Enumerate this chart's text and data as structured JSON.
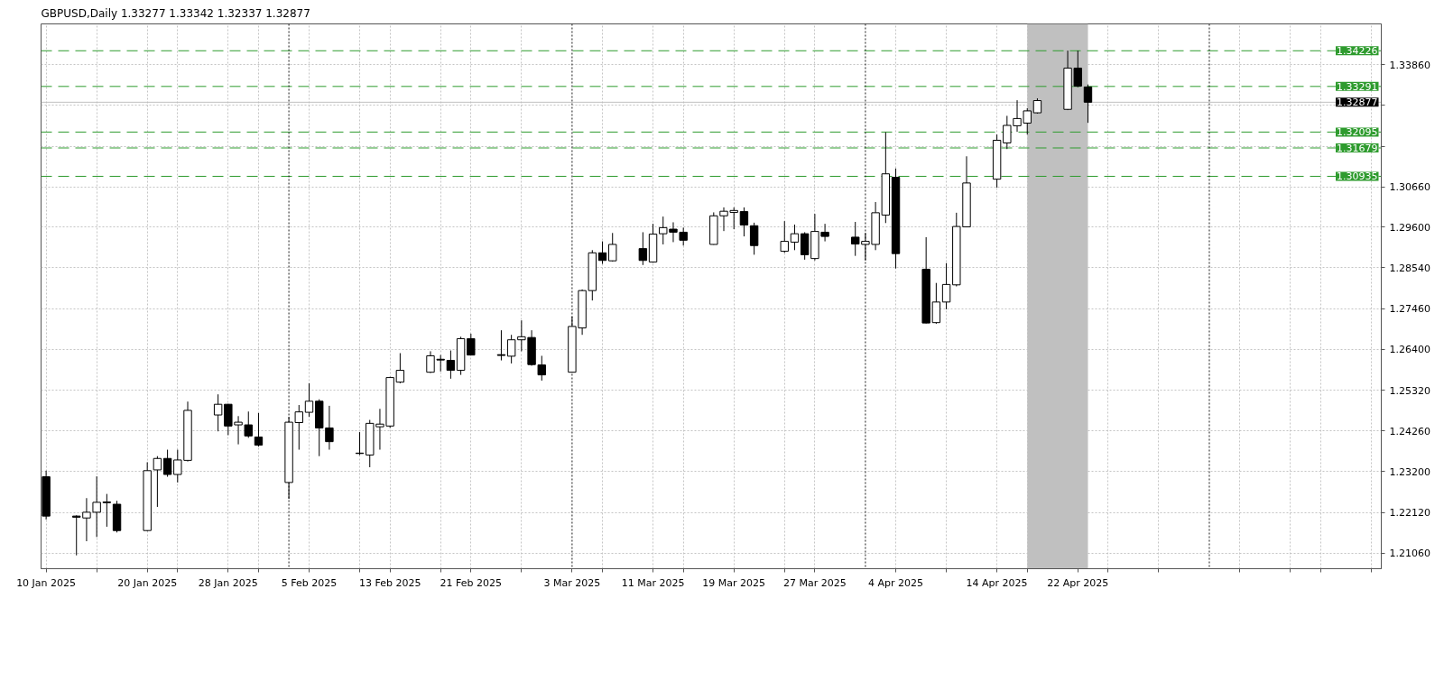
{
  "chart_data": {
    "type": "candlestick",
    "title": "GBPUSD,Daily 1.33277 1.33342 1.32337 1.32877",
    "x": [
      "2025-01-10",
      "2025-01-13",
      "2025-01-14",
      "2025-01-15",
      "2025-01-16",
      "2025-01-17",
      "2025-01-20",
      "2025-01-21",
      "2025-01-22",
      "2025-01-23",
      "2025-01-24",
      "2025-01-27",
      "2025-01-28",
      "2025-01-29",
      "2025-01-30",
      "2025-01-31",
      "2025-02-03",
      "2025-02-04",
      "2025-02-05",
      "2025-02-06",
      "2025-02-07",
      "2025-02-10",
      "2025-02-11",
      "2025-02-12",
      "2025-02-13",
      "2025-02-14",
      "2025-02-17",
      "2025-02-18",
      "2025-02-19",
      "2025-02-20",
      "2025-02-21",
      "2025-02-24",
      "2025-02-25",
      "2025-02-26",
      "2025-02-27",
      "2025-02-28",
      "2025-03-03",
      "2025-03-04",
      "2025-03-05",
      "2025-03-06",
      "2025-03-07",
      "2025-03-10",
      "2025-03-11",
      "2025-03-12",
      "2025-03-13",
      "2025-03-14",
      "2025-03-17",
      "2025-03-18",
      "2025-03-19",
      "2025-03-20",
      "2025-03-21",
      "2025-03-24",
      "2025-03-25",
      "2025-03-26",
      "2025-03-27",
      "2025-03-28",
      "2025-03-31",
      "2025-04-01",
      "2025-04-02",
      "2025-04-03",
      "2025-04-04",
      "2025-04-07",
      "2025-04-08",
      "2025-04-09",
      "2025-04-10",
      "2025-04-11",
      "2025-04-14",
      "2025-04-15",
      "2025-04-16",
      "2025-04-17",
      "2025-04-18",
      "2025-04-21",
      "2025-04-22",
      "2025-04-23"
    ],
    "ohlc": [
      [
        1.2306,
        1.2322,
        1.2194,
        1.2203
      ],
      [
        1.2203,
        1.2205,
        1.21,
        1.22
      ],
      [
        1.2198,
        1.225,
        1.2137,
        1.2213
      ],
      [
        1.2213,
        1.2307,
        1.2148,
        1.2239
      ],
      [
        1.2238,
        1.2261,
        1.2175,
        1.224
      ],
      [
        1.2234,
        1.2243,
        1.216,
        1.2165
      ],
      [
        1.2165,
        1.2344,
        1.2163,
        1.2322
      ],
      [
        1.2324,
        1.236,
        1.2227,
        1.2354
      ],
      [
        1.2354,
        1.2377,
        1.2306,
        1.2312
      ],
      [
        1.2312,
        1.2377,
        1.2291,
        1.235
      ],
      [
        1.2349,
        1.2503,
        1.2346,
        1.248
      ],
      [
        1.2468,
        1.2522,
        1.2425,
        1.2496
      ],
      [
        1.2496,
        1.2497,
        1.2415,
        1.2439
      ],
      [
        1.2442,
        1.2465,
        1.2391,
        1.2449
      ],
      [
        1.2442,
        1.2477,
        1.2408,
        1.2413
      ],
      [
        1.241,
        1.2473,
        1.2385,
        1.2389
      ],
      [
        1.2291,
        1.2463,
        1.2248,
        1.2449
      ],
      [
        1.2448,
        1.2494,
        1.2377,
        1.2476
      ],
      [
        1.2475,
        1.2551,
        1.2463,
        1.2504
      ],
      [
        1.2504,
        1.2509,
        1.236,
        1.2434
      ],
      [
        1.2434,
        1.2492,
        1.2377,
        1.2398
      ],
      [
        1.2368,
        1.2423,
        1.2363,
        1.2367
      ],
      [
        1.2363,
        1.2455,
        1.2331,
        1.2446
      ],
      [
        1.2437,
        1.2484,
        1.2377,
        1.2444
      ],
      [
        1.2439,
        1.2568,
        1.2434,
        1.2566
      ],
      [
        1.2554,
        1.263,
        1.2551,
        1.2585
      ],
      [
        1.258,
        1.2635,
        1.2578,
        1.2623
      ],
      [
        1.2614,
        1.2625,
        1.2582,
        1.2612
      ],
      [
        1.2611,
        1.2637,
        1.2563,
        1.2585
      ],
      [
        1.2585,
        1.2673,
        1.2573,
        1.2668
      ],
      [
        1.2668,
        1.2681,
        1.2624,
        1.2625
      ],
      [
        1.2626,
        1.269,
        1.2611,
        1.2624
      ],
      [
        1.2622,
        1.2678,
        1.2603,
        1.2665
      ],
      [
        1.2665,
        1.2716,
        1.2635,
        1.2673
      ],
      [
        1.2671,
        1.269,
        1.2597,
        1.26
      ],
      [
        1.2599,
        1.2623,
        1.2558,
        1.2573
      ],
      [
        1.258,
        1.2726,
        1.2579,
        1.27
      ],
      [
        1.2696,
        1.2797,
        1.2678,
        1.2794
      ],
      [
        1.2794,
        1.29,
        1.2768,
        1.2893
      ],
      [
        1.2893,
        1.2923,
        1.2864,
        1.2873
      ],
      [
        1.2872,
        1.2945,
        1.287,
        1.2915
      ],
      [
        1.2904,
        1.2947,
        1.2861,
        1.2873
      ],
      [
        1.2869,
        1.2969,
        1.2867,
        1.2942
      ],
      [
        1.2943,
        1.2988,
        1.2915,
        1.2959
      ],
      [
        1.2955,
        1.2973,
        1.2921,
        1.2947
      ],
      [
        1.2947,
        1.2959,
        1.2912,
        1.2926
      ],
      [
        1.2915,
        1.2999,
        1.2914,
        1.299
      ],
      [
        1.299,
        1.3012,
        1.295,
        1.3002
      ],
      [
        1.2999,
        1.3012,
        1.2955,
        1.3004
      ],
      [
        1.3001,
        1.3012,
        1.2936,
        1.2966
      ],
      [
        1.2964,
        1.2972,
        1.2888,
        1.2912
      ],
      [
        1.2897,
        1.2976,
        1.2893,
        1.2923
      ],
      [
        1.2921,
        1.2967,
        1.29,
        1.2943
      ],
      [
        1.2943,
        1.2947,
        1.2875,
        1.2888
      ],
      [
        1.2878,
        1.2995,
        1.2873,
        1.2949
      ],
      [
        1.2947,
        1.2969,
        1.2923,
        1.2936
      ],
      [
        1.2934,
        1.2974,
        1.2885,
        1.2916
      ],
      [
        1.2915,
        1.2945,
        1.2873,
        1.2923
      ],
      [
        1.2915,
        1.3026,
        1.29,
        1.2998
      ],
      [
        1.2992,
        1.3209,
        1.2971,
        1.31
      ],
      [
        1.3091,
        1.3114,
        1.2852,
        1.2891
      ],
      [
        1.285,
        1.2934,
        1.2708,
        1.2709
      ],
      [
        1.271,
        1.2814,
        1.2707,
        1.2764
      ],
      [
        1.2764,
        1.2866,
        1.2745,
        1.281
      ],
      [
        1.2809,
        1.2998,
        1.2805,
        1.2962
      ],
      [
        1.2961,
        1.3146,
        1.296,
        1.3076
      ],
      [
        1.3086,
        1.3203,
        1.3064,
        1.3188
      ],
      [
        1.3181,
        1.3252,
        1.3165,
        1.3227
      ],
      [
        1.3226,
        1.3293,
        1.321,
        1.3245
      ],
      [
        1.3233,
        1.3272,
        1.3203,
        1.3265
      ],
      [
        1.326,
        1.3298,
        1.3258,
        1.3292
      ],
      [
        1.3269,
        1.3423,
        1.3267,
        1.3377
      ],
      [
        1.3377,
        1.3423,
        1.3327,
        1.333
      ],
      [
        1.33277,
        1.33342,
        1.32337,
        1.32877
      ]
    ],
    "xlim": [
      "2025-01-09T12:00",
      "2025-05-22"
    ],
    "xticks": [
      {
        "value": "2025-01-10",
        "label": "10 Jan 2025"
      },
      {
        "value": "2025-01-15",
        "label": null
      },
      {
        "value": "2025-01-20",
        "label": "20 Jan 2025"
      },
      {
        "value": "2025-01-23",
        "label": null
      },
      {
        "value": "2025-01-28",
        "label": "28 Jan 2025"
      },
      {
        "value": "2025-01-31",
        "label": null
      },
      {
        "value": "2025-02-05",
        "label": "5 Feb 2025"
      },
      {
        "value": "2025-02-10",
        "label": null
      },
      {
        "value": "2025-02-13",
        "label": "13 Feb 2025"
      },
      {
        "value": "2025-02-18",
        "label": null
      },
      {
        "value": "2025-02-21",
        "label": "21 Feb 2025"
      },
      {
        "value": "2025-02-26",
        "label": null
      },
      {
        "value": "2025-03-03",
        "label": "3 Mar 2025"
      },
      {
        "value": "2025-03-06",
        "label": null
      },
      {
        "value": "2025-03-11",
        "label": "11 Mar 2025"
      },
      {
        "value": "2025-03-14",
        "label": null
      },
      {
        "value": "2025-03-19",
        "label": "19 Mar 2025"
      },
      {
        "value": "2025-03-24",
        "label": null
      },
      {
        "value": "2025-03-27",
        "label": "27 Mar 2025"
      },
      {
        "value": "2025-04-04",
        "label": "4 Apr 2025"
      },
      {
        "value": "2025-04-09",
        "label": null
      },
      {
        "value": "2025-04-14",
        "label": "14 Apr 2025"
      },
      {
        "value": "2025-04-17",
        "label": null
      },
      {
        "value": "2025-04-22",
        "label": "22 Apr 2025"
      },
      {
        "value": "2025-04-25",
        "label": null
      },
      {
        "value": "2025-04-30",
        "label": null
      },
      {
        "value": "2025-05-08",
        "label": null
      },
      {
        "value": "2025-05-13",
        "label": null
      },
      {
        "value": "2025-05-16",
        "label": null
      },
      {
        "value": "2025-05-21",
        "label": null
      }
    ],
    "ylim": [
      1.2065,
      1.3493
    ],
    "yticks": [
      {
        "value": 1.2106,
        "label": "1.21060"
      },
      {
        "value": 1.2212,
        "label": "1.22120"
      },
      {
        "value": 1.232,
        "label": "1.23200"
      },
      {
        "value": 1.2426,
        "label": "1.24260"
      },
      {
        "value": 1.2532,
        "label": "1.25320"
      },
      {
        "value": 1.264,
        "label": "1.26400"
      },
      {
        "value": 1.2746,
        "label": "1.27460"
      },
      {
        "value": 1.2854,
        "label": "1.28540"
      },
      {
        "value": 1.296,
        "label": "1.29600"
      },
      {
        "value": 1.3066,
        "label": "1.30660"
      },
      {
        "value": 1.3172,
        "label": null
      },
      {
        "value": 1.328,
        "label": null
      },
      {
        "value": 1.3386,
        "label": "1.33860"
      }
    ],
    "grid": true,
    "ref_lines": [
      {
        "axis": "y",
        "value": 1.34226,
        "label": "1.34226",
        "color": "#2e9b2e",
        "line_style": "dashed"
      },
      {
        "axis": "y",
        "value": 1.33291,
        "label": "1.33291",
        "color": "#2e9b2e",
        "line_style": "dashed"
      },
      {
        "axis": "y",
        "value": 1.32877,
        "label": "1.32877",
        "color": "#c0c0c0",
        "line_style": "solid"
      },
      {
        "axis": "y",
        "value": 1.32095,
        "label": "1.32095",
        "color": "#2e9b2e",
        "line_style": "dashed"
      },
      {
        "axis": "y",
        "value": 1.31679,
        "label": "1.31679",
        "color": "#2e9b2e",
        "line_style": "dashed"
      },
      {
        "axis": "y",
        "value": 1.30935,
        "label": "1.30935",
        "color": "#2e9b2e",
        "line_style": "dashed"
      },
      {
        "axis": "x",
        "value": "2025-02-03",
        "color": "#1a1a1a",
        "line_style": "dotted"
      },
      {
        "axis": "x",
        "value": "2025-03-03",
        "color": "#1a1a1a",
        "line_style": "dotted"
      },
      {
        "axis": "x",
        "value": "2025-04-01",
        "color": "#1a1a1a",
        "line_style": "dotted"
      },
      {
        "axis": "x",
        "value": "2025-05-05",
        "color": "#1a1a1a",
        "line_style": "dotted"
      }
    ],
    "bands": [
      {
        "axis": "x",
        "from": "2025-04-17",
        "to": "2025-04-23",
        "color": "#c0c0c0"
      }
    ]
  }
}
